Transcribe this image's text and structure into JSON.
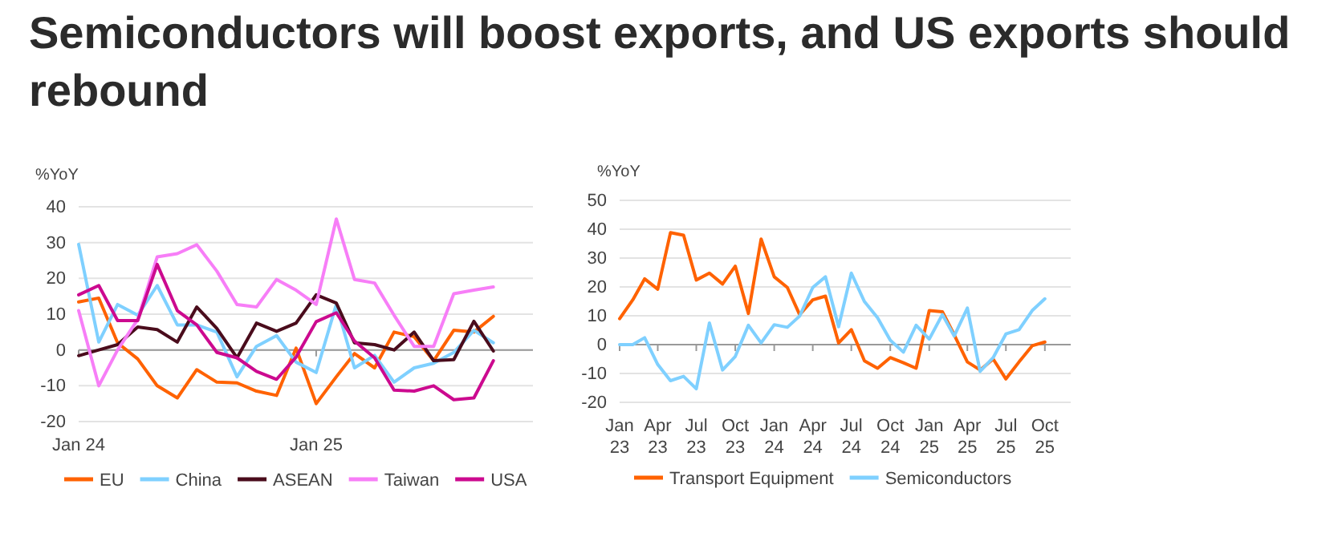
{
  "chart_data": [
    {
      "type": "line",
      "title": "Semiconductors will boost exports, and US exports should rebound",
      "ylabel": "%YoY",
      "x": [
        "2024-01",
        "2024-02",
        "2024-03",
        "2024-04",
        "2024-05",
        "2024-06",
        "2024-07",
        "2024-08",
        "2024-09",
        "2024-10",
        "2024-11",
        "2024-12",
        "2025-01",
        "2025-02",
        "2025-03",
        "2025-04",
        "2025-05",
        "2025-06",
        "2025-07",
        "2025-08",
        "2025-09",
        "2025-10"
      ],
      "xlim": [
        "2024-01",
        "2025-12"
      ],
      "xticks": [
        {
          "value": "2024-01",
          "label": "Jan 24"
        },
        {
          "value": "2025-01",
          "label": "Jan 25"
        }
      ],
      "ylim": [
        -20,
        40
      ],
      "yticks": [
        -20,
        -10,
        0,
        10,
        20,
        30,
        40
      ],
      "grid": "y",
      "legend": "bottom",
      "line_style": "solid",
      "series": [
        {
          "name": "EU",
          "color": "#ff6200",
          "values": [
            13.4,
            14.5,
            2,
            -2.5,
            -10,
            -13.4,
            -5.5,
            -9,
            -9.2,
            -11.5,
            -12.7,
            0.5,
            -15,
            -7.5,
            -1,
            -5,
            5,
            3.7,
            -3,
            5.5,
            5,
            9.4
          ]
        },
        {
          "name": "China",
          "color": "#7fd0ff",
          "values": [
            29.5,
            2.2,
            12.7,
            9.7,
            18,
            7,
            7,
            5,
            -7.5,
            1,
            4,
            -3.4,
            -6.3,
            12.7,
            -5,
            -1.5,
            -9,
            -5,
            -3.7,
            -0.7,
            5.5,
            2
          ]
        },
        {
          "name": "ASEAN",
          "color": "#4a0c1c",
          "values": [
            -1.6,
            0,
            1.5,
            6.4,
            5.7,
            2.2,
            12,
            6,
            -2.2,
            7.5,
            5.2,
            7.5,
            15.4,
            13.1,
            2,
            1.5,
            0,
            5,
            -3,
            -2.7,
            8,
            -0.3
          ]
        },
        {
          "name": "Taiwan",
          "color": "#f77ef7",
          "values": [
            11,
            -10,
            0,
            8.5,
            26,
            26.9,
            29.4,
            22,
            12.7,
            12,
            19.7,
            16.7,
            12.7,
            36.6,
            19.7,
            18.7,
            9.7,
            1,
            1,
            15.7,
            16.7,
            17.6
          ]
        },
        {
          "name": "USA",
          "color": "#cc0a8f",
          "values": [
            15.4,
            18,
            8.2,
            8.2,
            23.9,
            11,
            7,
            -0.7,
            -2.2,
            -6,
            -8.2,
            -2,
            7.9,
            10.4,
            2.5,
            -2.2,
            -11.2,
            -11.5,
            -10,
            -13.9,
            -13.4,
            -3
          ]
        }
      ]
    },
    {
      "type": "line",
      "ylabel": "%YoY",
      "x": [
        "2023-01",
        "2023-02",
        "2023-03",
        "2023-04",
        "2023-05",
        "2023-06",
        "2023-07",
        "2023-08",
        "2023-09",
        "2023-10",
        "2023-11",
        "2023-12",
        "2024-01",
        "2024-02",
        "2024-03",
        "2024-04",
        "2024-05",
        "2024-06",
        "2024-07",
        "2024-08",
        "2024-09",
        "2024-10",
        "2024-11",
        "2024-12",
        "2025-01",
        "2025-02",
        "2025-03",
        "2025-04",
        "2025-05",
        "2025-06",
        "2025-07",
        "2025-08",
        "2025-09",
        "2025-10"
      ],
      "xlim": [
        "2023-01",
        "2025-12"
      ],
      "xticks": [
        {
          "value": "2023-01",
          "label": "Jan 23"
        },
        {
          "value": "2023-04",
          "label": "Apr 23"
        },
        {
          "value": "2023-07",
          "label": "Jul 23"
        },
        {
          "value": "2023-10",
          "label": "Oct 23"
        },
        {
          "value": "2024-01",
          "label": "Jan 24"
        },
        {
          "value": "2024-04",
          "label": "Apr 24"
        },
        {
          "value": "2024-07",
          "label": "Jul 24"
        },
        {
          "value": "2024-10",
          "label": "Oct 24"
        },
        {
          "value": "2025-01",
          "label": "Jan 25"
        },
        {
          "value": "2025-04",
          "label": "Apr 25"
        },
        {
          "value": "2025-07",
          "label": "Jul 25"
        },
        {
          "value": "2025-10",
          "label": "Oct 25"
        }
      ],
      "ylim": [
        -20,
        50
      ],
      "yticks": [
        -20,
        -10,
        0,
        10,
        20,
        30,
        40,
        50
      ],
      "grid": "y",
      "legend": "bottom",
      "line_style": "solid",
      "series": [
        {
          "name": "Transport Equipment",
          "color": "#ff6200",
          "values": [
            9,
            15.5,
            22.8,
            19.2,
            38.8,
            37.9,
            22.4,
            24.8,
            21,
            27.2,
            10.8,
            36.6,
            23.5,
            19.8,
            10.4,
            15.5,
            16.8,
            0.6,
            5.2,
            -5.6,
            -8.2,
            -4.5,
            -6.3,
            -8.2,
            11.8,
            11.4,
            3.4,
            -6,
            -8.8,
            -5,
            -11.9,
            -6,
            -0.4,
            0.9
          ]
        },
        {
          "name": "Semiconductors",
          "color": "#7fd0ff",
          "values": [
            0,
            0,
            2.4,
            -6.9,
            -12.5,
            -11,
            -15.3,
            7.5,
            -8.8,
            -4.1,
            6.7,
            0.6,
            6.9,
            6,
            9.9,
            19.8,
            23.5,
            6.2,
            24.8,
            14.9,
            9.3,
            1.5,
            -2.6,
            6.7,
            1.9,
            10.4,
            3,
            12.7,
            -9.3,
            -4.5,
            3.7,
            5.2,
            11.8,
            15.9
          ]
        }
      ]
    }
  ]
}
